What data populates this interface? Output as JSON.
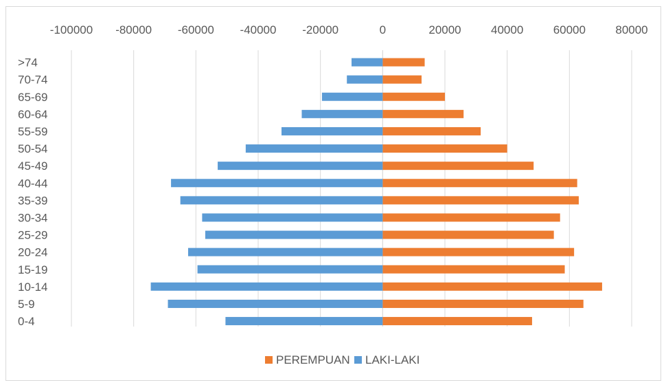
{
  "chart_data": {
    "type": "bar",
    "orientation": "horizontal",
    "stacked": true,
    "categories": [
      "0-4",
      "5-9",
      "10-14",
      "15-19",
      "20-24",
      "25-29",
      "30-34",
      "35-39",
      "40-44",
      "45-49",
      "50-54",
      "55-59",
      "60-64",
      "65-69",
      "70-74",
      ">74"
    ],
    "series": [
      {
        "name": "PEREMPUAN",
        "color": "#ed7d31",
        "values": [
          48000,
          64500,
          70500,
          58500,
          61500,
          55000,
          57000,
          63000,
          62500,
          48500,
          40000,
          31500,
          26000,
          20000,
          12500,
          13500
        ]
      },
      {
        "name": "LAKI-LAKI",
        "color": "#5b9bd5",
        "values": [
          -50500,
          -69000,
          -74500,
          -59500,
          -62500,
          -57000,
          -58000,
          -65000,
          -68000,
          -53000,
          -44000,
          -32500,
          -26000,
          -19500,
          -11500,
          -10000
        ]
      }
    ],
    "xlim": [
      -100000,
      80000
    ],
    "xticks": [
      -100000,
      -80000,
      -60000,
      -40000,
      -20000,
      0,
      20000,
      40000,
      60000,
      80000
    ],
    "xtick_labels": [
      "-100000",
      "-80000",
      "-60000",
      "-40000",
      "-20000",
      "0",
      "20000",
      "40000",
      "60000",
      "80000"
    ],
    "x_axis_position": "top",
    "grid": "vertical",
    "legend": "bottom",
    "legend_order": [
      "PEREMPUAN",
      "LAKI-LAKI"
    ],
    "title": "",
    "xlabel": "",
    "ylabel": ""
  }
}
